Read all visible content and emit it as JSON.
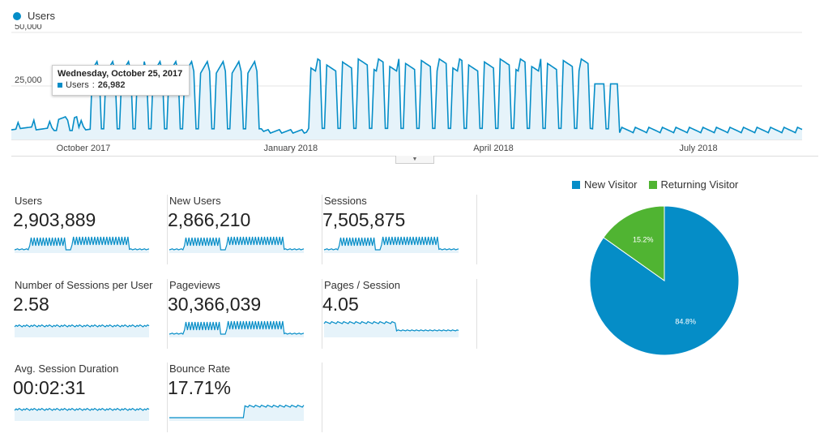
{
  "colors": {
    "primary": "#058dc7",
    "fill": "#e6f3fa",
    "secondary": "#50b432"
  },
  "timeline": {
    "legend_label": "Users",
    "y_ticks": [
      {
        "value": 50000,
        "label": "50,000"
      },
      {
        "value": 25000,
        "label": "25,000"
      }
    ],
    "x_ticks": [
      {
        "label": "October 2017",
        "index": 32
      },
      {
        "label": "January 2018",
        "index": 124
      },
      {
        "label": "April 2018",
        "index": 214
      },
      {
        "label": "July 2018",
        "index": 305
      }
    ],
    "tooltip": {
      "date": "Wednesday, October 25, 2017",
      "series": "Users",
      "value": "26,982"
    }
  },
  "chart_data": {
    "type": "line",
    "series": [
      {
        "name": "Users",
        "values": []
      }
    ],
    "ylim": [
      0,
      50000
    ],
    "grid": true,
    "legend": "top-left",
    "note_x": "daily values, Aug 2017 - Jul 2018"
  },
  "metrics": [
    {
      "label": "Users",
      "value": "2,903,889",
      "trend": "users"
    },
    {
      "label": "New Users",
      "value": "2,866,210",
      "trend": "users"
    },
    {
      "label": "Sessions",
      "value": "7,505,875",
      "trend": "users"
    },
    {
      "label": "Number of Sessions per User",
      "value": "2.58",
      "trend": "flat"
    },
    {
      "label": "Pageviews",
      "value": "30,366,039",
      "trend": "users"
    },
    {
      "label": "Pages / Session",
      "value": "4.05",
      "trend": "step-down"
    },
    {
      "label": "Avg. Session Duration",
      "value": "00:02:31",
      "trend": "flat"
    },
    {
      "label": "Bounce Rate",
      "value": "17.71%",
      "trend": "step-up"
    }
  ],
  "pie": {
    "slices": [
      {
        "label": "New Visitor",
        "percent": 84.8,
        "percent_label": "84.8%",
        "color": "#058dc7"
      },
      {
        "label": "Returning Visitor",
        "percent": 15.2,
        "percent_label": "15.2%",
        "color": "#50b432"
      }
    ]
  }
}
